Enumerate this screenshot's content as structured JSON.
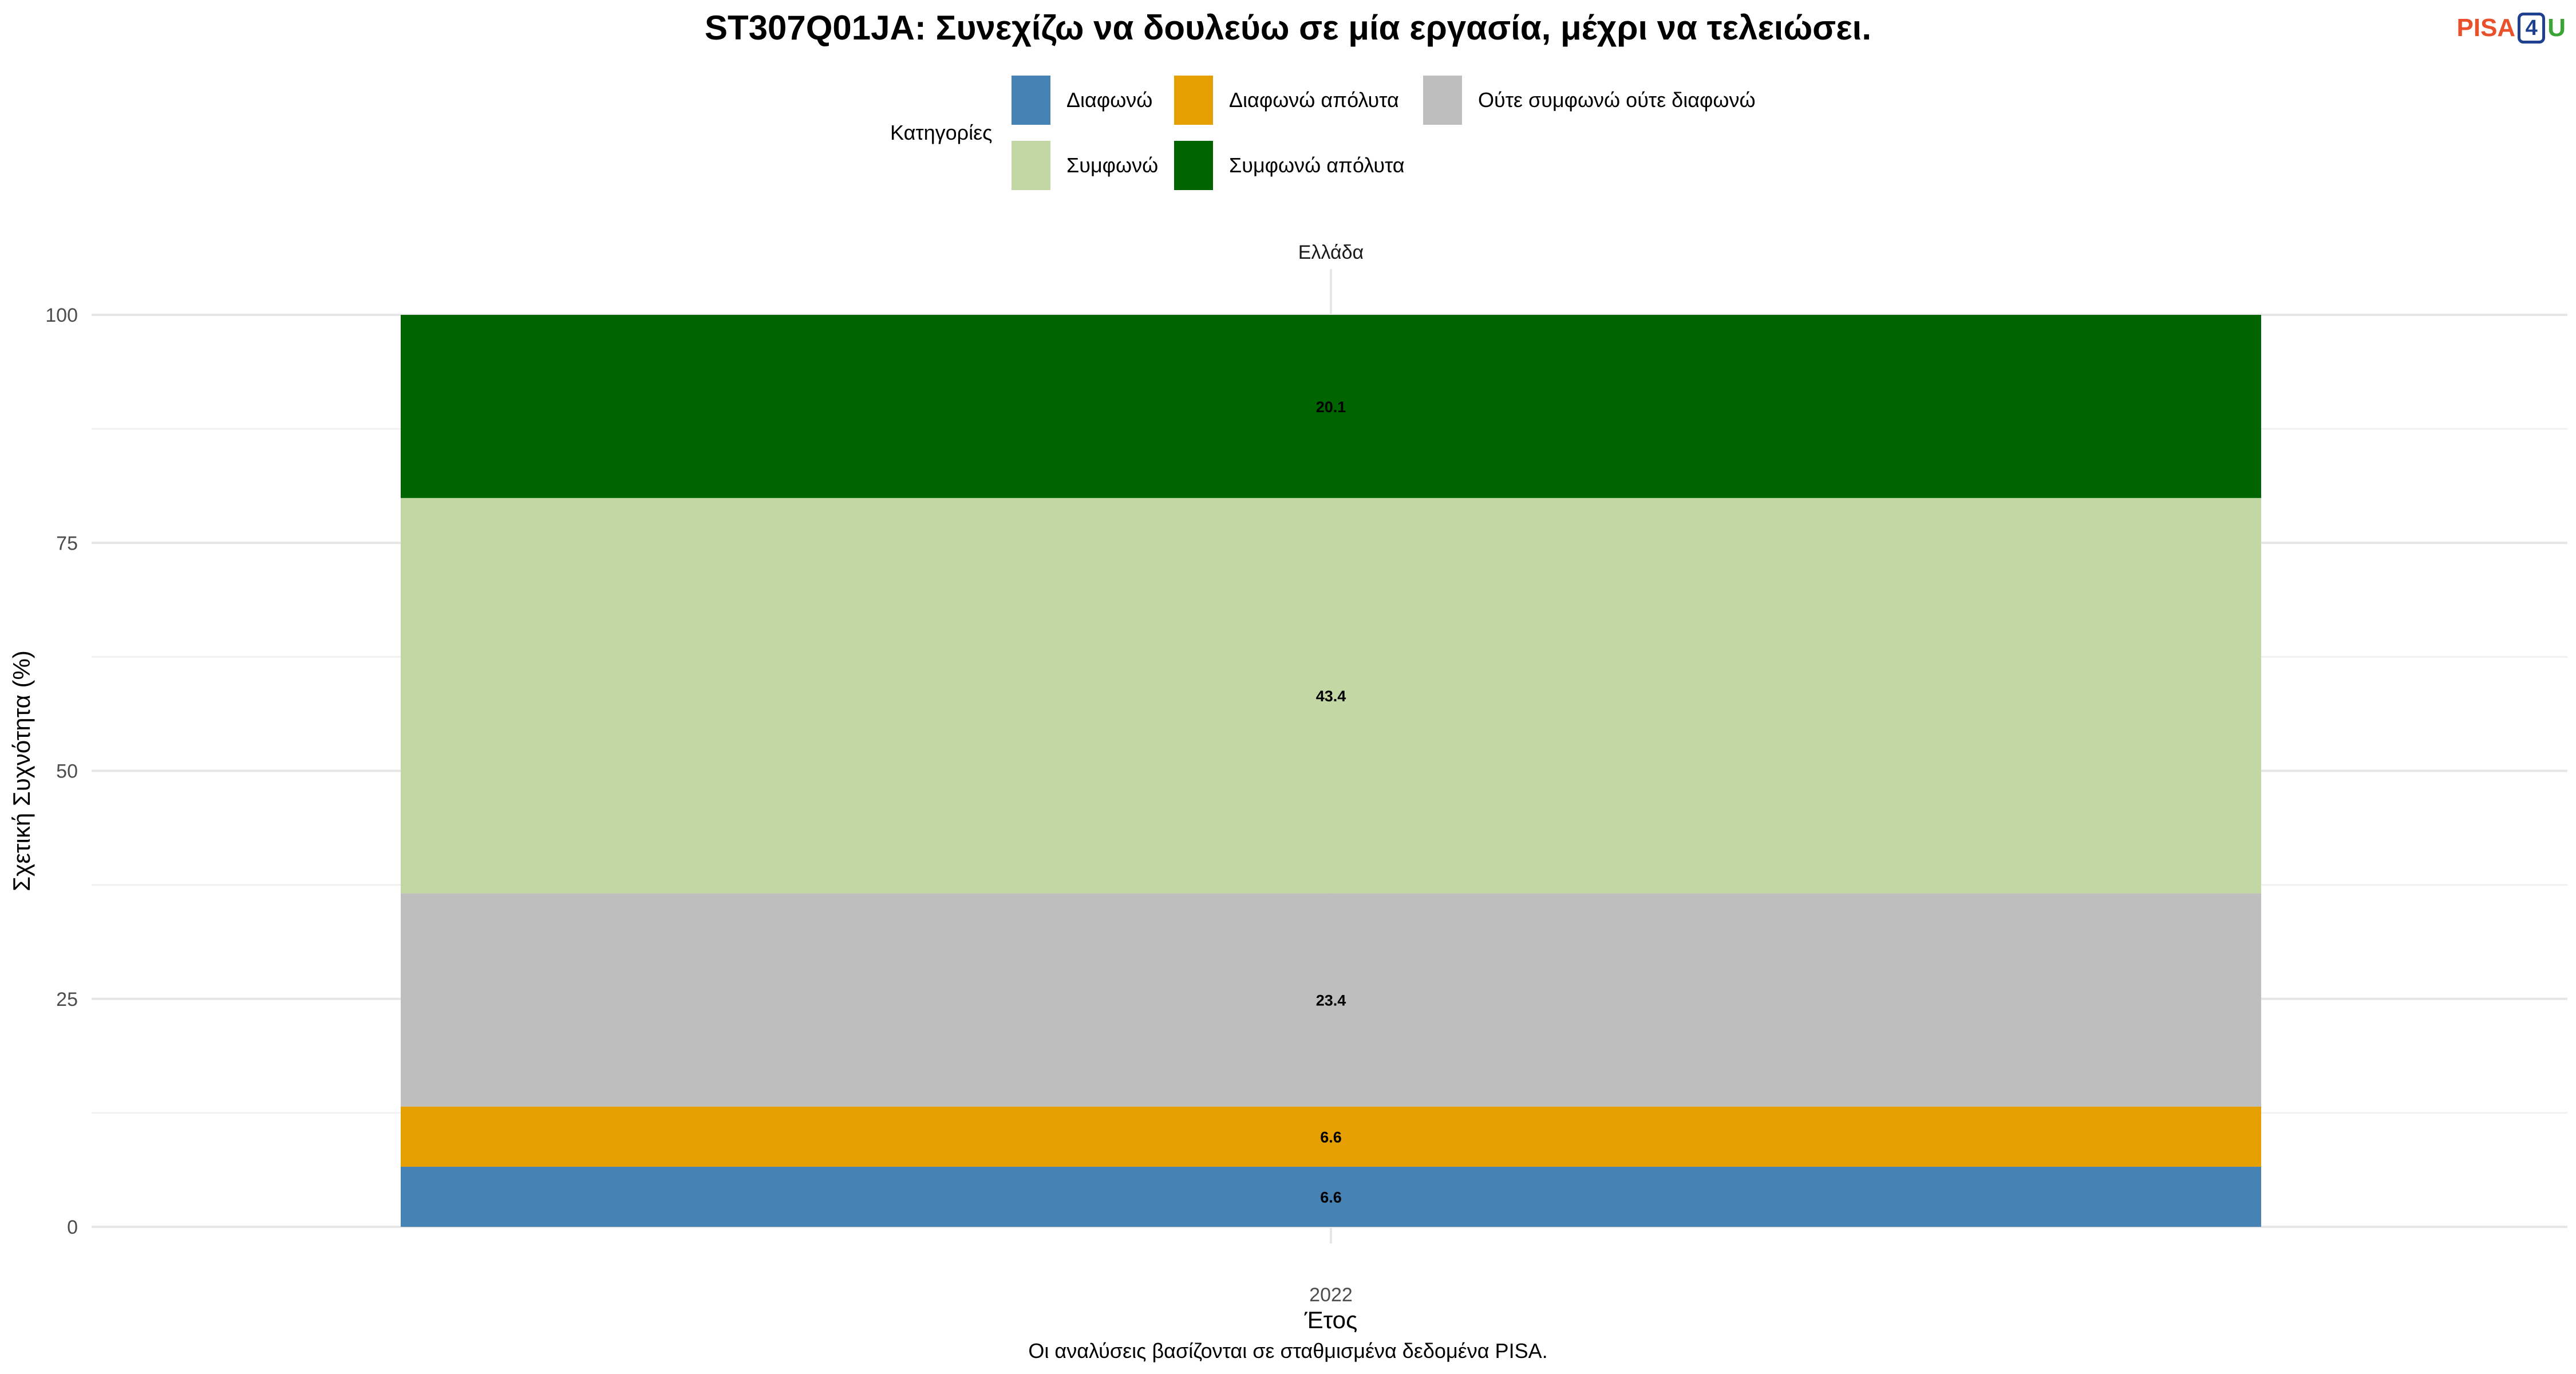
{
  "chart_data": {
    "type": "bar",
    "stacked": true,
    "title": "ST307Q01JA: Συνεχίζω να δουλεύω σε μία εργασία, μέχρι να τελειώσει.",
    "facet_label": "Ελλάδα",
    "xlabel": "Έτος",
    "ylabel": "Σχετική Συχνότητα (%)",
    "categories": [
      "2022"
    ],
    "ylim": [
      0,
      100
    ],
    "yticks": [
      "0",
      "25",
      "50",
      "75",
      "100"
    ],
    "legend_title": "Κατηγορίες",
    "legend_position": "top",
    "grid": true,
    "series": [
      {
        "name": "Διαφωνώ",
        "values": [
          6.6
        ],
        "label": "6.6",
        "color": "#4682b4"
      },
      {
        "name": "Διαφωνώ απόλυτα",
        "values": [
          6.6
        ],
        "label": "6.6",
        "color": "#e69f00"
      },
      {
        "name": "Ούτε συμφωνώ ούτε διαφωνώ",
        "values": [
          23.4
        ],
        "label": "23.4",
        "color": "#bebebe"
      },
      {
        "name": "Συμφωνώ",
        "values": [
          43.4
        ],
        "label": "43.4",
        "color": "#c3d7a5"
      },
      {
        "name": "Συμφωνώ απόλυτα",
        "values": [
          20.1
        ],
        "label": "20.1",
        "color": "#006400"
      }
    ],
    "caption": "Οι αναλύσεις βασίζονται σε σταθμισμένα δεδομένα PISA."
  },
  "logo": {
    "pisa": "PISA",
    "four": "4",
    "u": "U"
  }
}
